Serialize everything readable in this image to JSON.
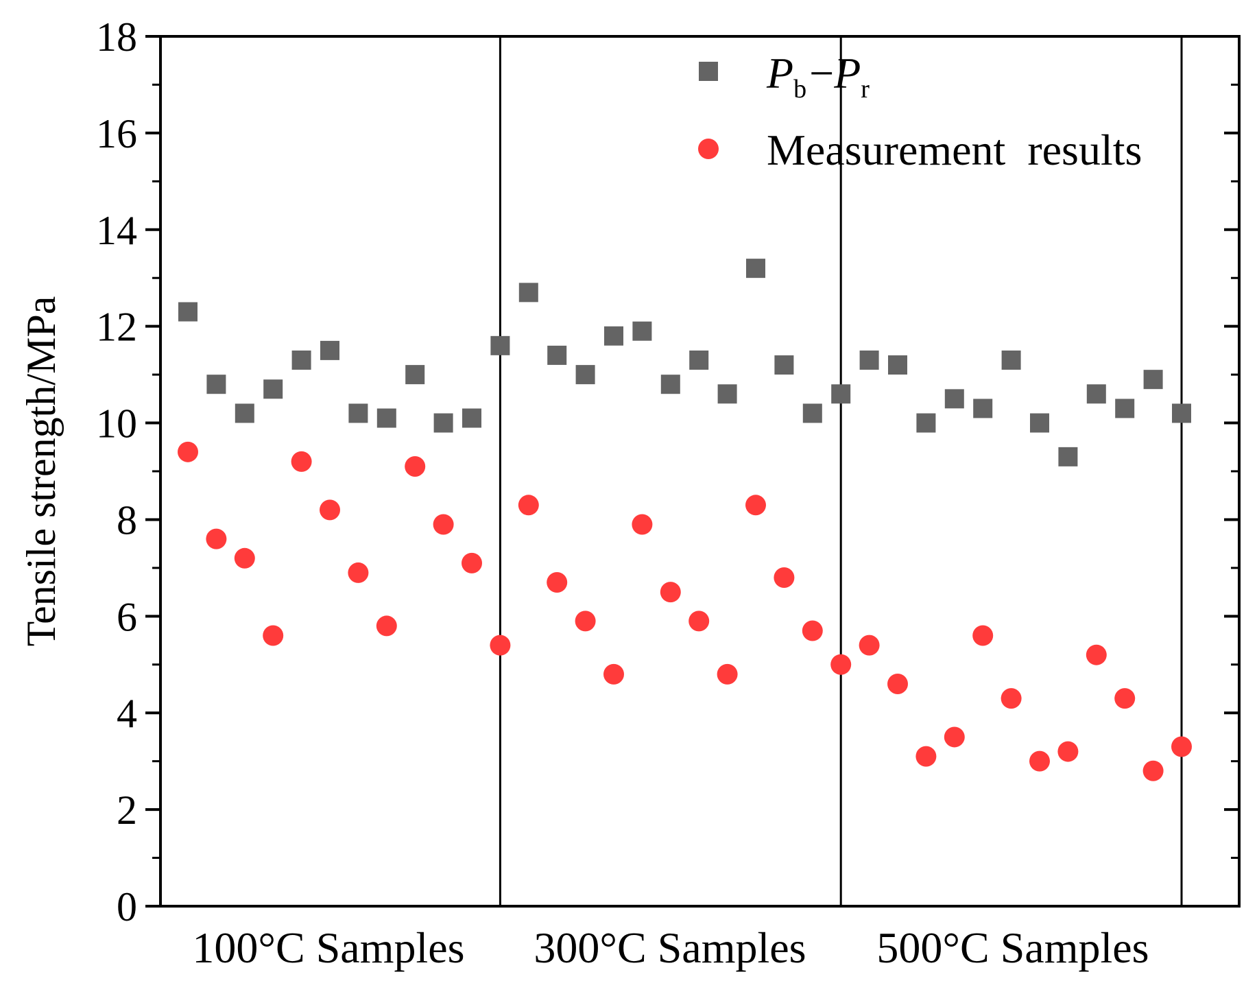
{
  "chart_data": {
    "type": "scatter",
    "title": "",
    "ylabel": "Tensile strength/MPa",
    "xlabel": "",
    "ylim": [
      0,
      18
    ],
    "yticks": [
      0,
      2,
      4,
      6,
      8,
      10,
      12,
      14,
      16,
      18
    ],
    "ytick_labels": [
      "0",
      "2",
      "4",
      "6",
      "8",
      "10",
      "12",
      "14",
      "16",
      "18"
    ],
    "group_labels": [
      "100°C Samples",
      "300°C Samples",
      "500°C Samples"
    ],
    "x": [
      1,
      2,
      3,
      4,
      5,
      6,
      7,
      8,
      9,
      10,
      11,
      12,
      13,
      14,
      15,
      16,
      17,
      18,
      19,
      20,
      21,
      22,
      23,
      24,
      25,
      26,
      27,
      28,
      29,
      30,
      31,
      32,
      33,
      34,
      35,
      36,
      37
    ],
    "group_dividers_after_x": [
      12,
      24,
      36
    ],
    "series": [
      {
        "name": "Pb−Pr",
        "legend_main_1": "P",
        "legend_sub_1": "b",
        "legend_op": "−",
        "legend_main_2": "P",
        "legend_sub_2": "r",
        "marker": "square",
        "color": "#646464",
        "values": [
          12.3,
          10.8,
          10.2,
          10.7,
          11.3,
          11.5,
          10.2,
          10.1,
          11.0,
          10.0,
          10.1,
          11.6,
          12.7,
          11.4,
          11.0,
          11.8,
          11.9,
          10.8,
          11.3,
          10.6,
          13.2,
          11.2,
          10.2,
          10.6,
          11.3,
          11.2,
          10.0,
          10.5,
          10.3,
          11.3,
          10.0,
          9.3,
          10.6,
          10.3,
          10.9,
          10.2
        ]
      },
      {
        "name": "Measurement results",
        "legend_label": "Measurement  results",
        "marker": "circle",
        "color": "#ff3b3b",
        "values": [
          9.4,
          7.6,
          7.2,
          5.6,
          9.2,
          8.2,
          6.9,
          5.8,
          9.1,
          7.9,
          7.1,
          5.4,
          8.3,
          6.7,
          5.9,
          4.8,
          7.9,
          6.5,
          5.9,
          4.8,
          8.3,
          6.8,
          5.7,
          5.0,
          5.4,
          4.6,
          3.1,
          3.5,
          5.6,
          4.3,
          3.0,
          3.2,
          5.2,
          4.3,
          2.8,
          3.3
        ]
      }
    ],
    "legend_position": "top-right",
    "grid": false
  }
}
